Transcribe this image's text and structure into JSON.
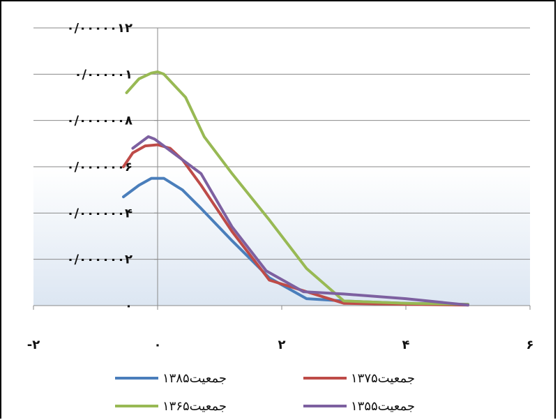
{
  "chart_data": {
    "type": "line",
    "title": "",
    "xlabel": "",
    "ylabel": "",
    "xlim": [
      -2,
      6
    ],
    "ylim": [
      0,
      12
    ],
    "x_ticks": [
      -2,
      0,
      2,
      4,
      6
    ],
    "x_tick_labels": [
      "-۲",
      "۰",
      "۲",
      "۴",
      "۶"
    ],
    "y_ticks": [
      0,
      2,
      4,
      6,
      8,
      10,
      12
    ],
    "y_tick_labels": [
      "۰",
      "۰/۰۰۰۰۰۰۲",
      "۰/۰۰۰۰۰۰۴",
      "۰/۰۰۰۰۰۰۶",
      "۰/۰۰۰۰۰۰۸",
      "۰/۰۰۰۰۰۱",
      "۰/۰۰۰۰۰۱۲"
    ],
    "grid": "horizontal",
    "legend_position": "bottom",
    "series": [
      {
        "name": "جمعیت۱۳۸۵",
        "color": "#4a7ebb",
        "x": [
          -0.55,
          -0.3,
          -0.1,
          0.1,
          0.4,
          0.7,
          1.2,
          1.8,
          2.4,
          3.0,
          4.0,
          5.0
        ],
        "y": [
          4.7,
          5.2,
          5.5,
          5.5,
          5.0,
          4.2,
          2.8,
          1.2,
          0.3,
          0.2,
          0.1,
          0.05
        ]
      },
      {
        "name": "جمعیت۱۳۷۵",
        "color": "#be4b48",
        "x": [
          -0.55,
          -0.4,
          -0.2,
          0.0,
          0.2,
          0.4,
          0.7,
          1.2,
          1.8,
          2.4,
          3.0,
          4.0,
          5.0
        ],
        "y": [
          6.0,
          6.6,
          6.9,
          6.95,
          6.8,
          6.3,
          5.2,
          3.2,
          1.1,
          0.6,
          0.1,
          0.05,
          0.02
        ]
      },
      {
        "name": "جمعیت۱۳۶۵",
        "color": "#98b954",
        "x": [
          -0.5,
          -0.3,
          -0.1,
          0.0,
          0.1,
          0.45,
          0.75,
          1.2,
          1.8,
          2.4,
          3.0,
          4.0,
          5.0
        ],
        "y": [
          9.2,
          9.8,
          10.05,
          10.1,
          10.0,
          9.0,
          7.3,
          5.7,
          3.7,
          1.6,
          0.2,
          0.1,
          0.05
        ]
      },
      {
        "name": "جمعیت۱۳۵۵",
        "color": "#7d60a0",
        "x": [
          -0.4,
          -0.3,
          -0.15,
          -0.05,
          0.1,
          0.3,
          0.7,
          1.2,
          1.75,
          2.35,
          3.0,
          4.0,
          5.0
        ],
        "y": [
          6.8,
          7.0,
          7.3,
          7.2,
          6.9,
          6.5,
          5.7,
          3.4,
          1.5,
          0.6,
          0.5,
          0.3,
          0.02
        ]
      }
    ]
  }
}
